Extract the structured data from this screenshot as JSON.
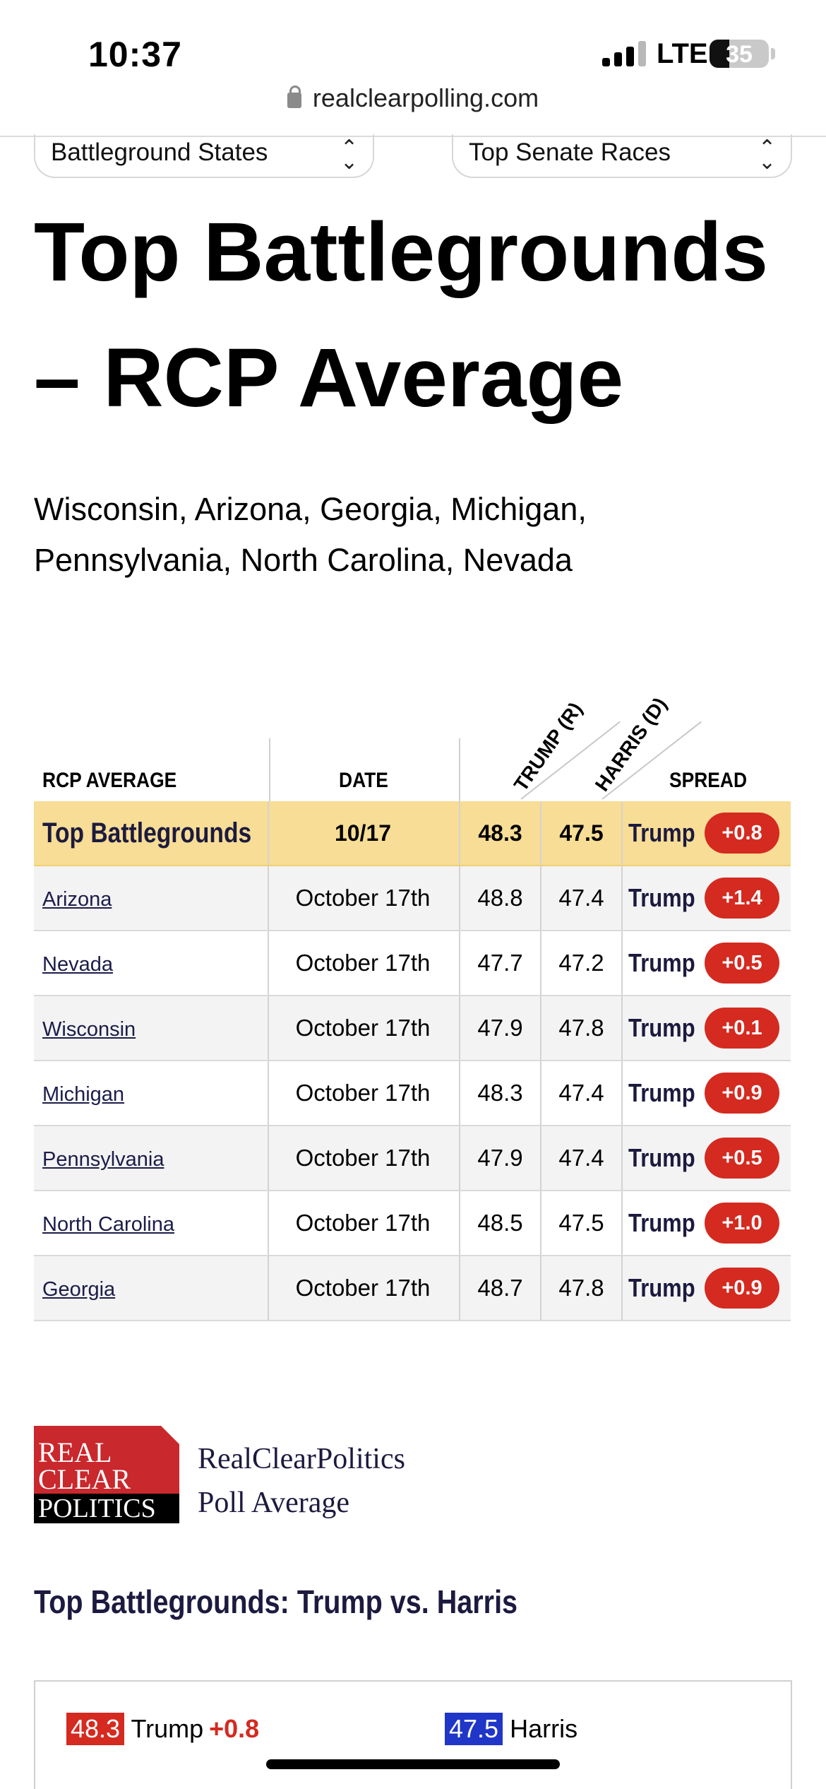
{
  "status_bar": {
    "time": "10:37",
    "network": "LTE",
    "battery": "35"
  },
  "browser": {
    "url": "realclearpolling.com"
  },
  "selects": [
    {
      "value": "Battleground States"
    },
    {
      "value": "Top Senate Races"
    }
  ],
  "page": {
    "title": "Top Battlegrounds – RCP Average",
    "subtitle": "Wisconsin, Arizona, Georgia, Michigan, Pennsylvania, North Carolina, Nevada"
  },
  "table": {
    "headers": {
      "rcp_average": "RCP AVERAGE",
      "date": "DATE",
      "trump": "TRUMP (R)",
      "harris": "HARRIS (D)",
      "spread": "SPREAD"
    },
    "average_row": {
      "name": "Top Battlegrounds",
      "date": "10/17",
      "trump": "48.3",
      "harris": "47.5",
      "leader": "Trump",
      "spread": "+0.8"
    },
    "rows": [
      {
        "name": "Arizona",
        "date": "October 17th",
        "trump": "48.8",
        "harris": "47.4",
        "leader": "Trump",
        "spread": "+1.4"
      },
      {
        "name": "Nevada",
        "date": "October 17th",
        "trump": "47.7",
        "harris": "47.2",
        "leader": "Trump",
        "spread": "+0.5"
      },
      {
        "name": "Wisconsin",
        "date": "October 17th",
        "trump": "47.9",
        "harris": "47.8",
        "leader": "Trump",
        "spread": "+0.1"
      },
      {
        "name": "Michigan",
        "date": "October 17th",
        "trump": "48.3",
        "harris": "47.4",
        "leader": "Trump",
        "spread": "+0.9"
      },
      {
        "name": "Pennsylvania",
        "date": "October 17th",
        "trump": "47.9",
        "harris": "47.4",
        "leader": "Trump",
        "spread": "+0.5"
      },
      {
        "name": "North Carolina",
        "date": "October 17th",
        "trump": "48.5",
        "harris": "47.5",
        "leader": "Trump",
        "spread": "+1.0"
      },
      {
        "name": "Georgia",
        "date": "October 17th",
        "trump": "48.7",
        "harris": "47.8",
        "leader": "Trump",
        "spread": "+0.9"
      }
    ]
  },
  "rcp": {
    "logo_lines": [
      "REAL",
      "CLEAR",
      "POLITICS"
    ],
    "text_line1": "RealClearPolitics",
    "text_line2": "Poll Average",
    "section_title": "Top Battlegrounds: Trump vs. Harris"
  },
  "results": {
    "trump": {
      "value": "48.3",
      "name": "Trump",
      "margin": "+0.8"
    },
    "harris": {
      "value": "47.5",
      "name": "Harris"
    }
  },
  "colors": {
    "republican": "#d42a20",
    "democrat": "#2036c8",
    "highlight": "#f7dd95",
    "navy_text": "#1c1a3f"
  }
}
